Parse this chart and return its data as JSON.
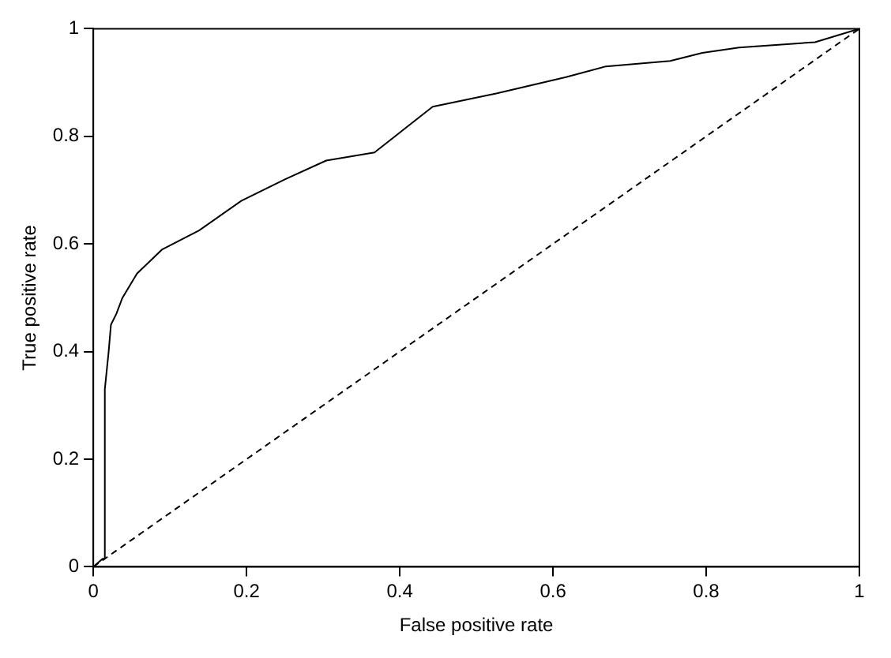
{
  "chart_data": {
    "type": "line",
    "xlabel": "False positive rate",
    "ylabel": "True positive rate",
    "xlim": [
      0,
      1
    ],
    "ylim": [
      0,
      1
    ],
    "xticks": [
      0,
      0.2,
      0.4,
      0.6,
      0.8,
      1
    ],
    "yticks": [
      0,
      0.2,
      0.4,
      0.6,
      0.8,
      1
    ],
    "grid": false,
    "legend": false,
    "series": [
      {
        "color": "#000000",
        "line_style": "solid",
        "x": [
          0,
          0.012,
          0.015,
          0.015,
          0.02,
          0.023,
          0.03,
          0.038,
          0.057,
          0.09,
          0.138,
          0.193,
          0.25,
          0.304,
          0.367,
          0.443,
          0.527,
          0.617,
          0.669,
          0.753,
          0.795,
          0.843,
          0.942,
          1
        ],
        "values": [
          0,
          0.015,
          0.015,
          0.33,
          0.4,
          0.45,
          0.47,
          0.5,
          0.545,
          0.59,
          0.625,
          0.68,
          0.72,
          0.755,
          0.77,
          0.855,
          0.88,
          0.91,
          0.93,
          0.94,
          0.955,
          0.965,
          0.975,
          1
        ]
      },
      {
        "color": "#000000",
        "line_style": "dashed",
        "x": [
          0,
          1
        ],
        "values": [
          0,
          1
        ]
      }
    ]
  }
}
